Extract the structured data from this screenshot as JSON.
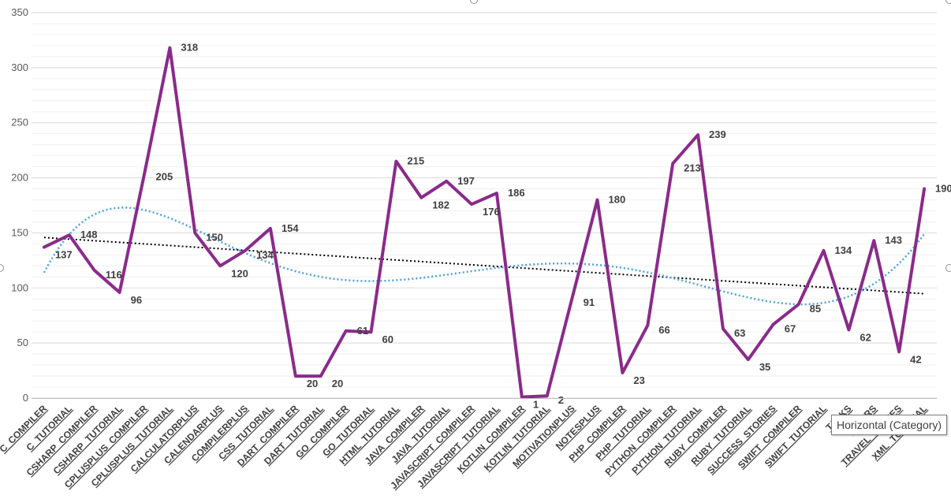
{
  "chart_data": {
    "type": "line",
    "title": "",
    "xlabel": "",
    "ylabel": "",
    "ylim": [
      0,
      350
    ],
    "yticks": [
      0,
      50,
      100,
      150,
      200,
      250,
      300,
      350
    ],
    "grid": true,
    "categories": [
      "C_COMPILER",
      "C_TUTORIAL",
      "CSHARP_COMPILER",
      "CSHARP_TUTORIAL",
      "CPLUSPLUS_COMPILER",
      "CPLUSPLUS_TUTORIAL",
      "CALCULATORPLUS",
      "CALENDARPLUS",
      "COMPILERPLUS",
      "CSS_TUTORIAL",
      "DART_COMPILER",
      "DART_TUTORIAL",
      "GO_COMPILER",
      "GO_TUTORIAL",
      "HTML_TUTORIAL",
      "JAVA_COMPILER",
      "JAVA_TUTORIAL",
      "JAVASCRIPT_COMPILER",
      "JAVASCRIPT_TUTORIAL",
      "KOTLIN_COMPILER",
      "KOTLIN_TUTORIAL",
      "MOTIVATIONPLUS",
      "NOTESPLUS",
      "PHP_COMPILER",
      "PHP_TUTORIAL",
      "PYTHON_COMPILER",
      "PYTHON_TUTORIAL",
      "RUBY_COMPILER",
      "RUBY_TUTORIAL",
      "SUCCESS_STORIES",
      "SWIFT_COMPILER",
      "SWIFT_TUTORIAL",
      "TASKS",
      "TIMERS",
      "TRAVEL_DIARIES",
      "XML_TUTORIAL"
    ],
    "x_labels_display": [
      "C_COMPILER",
      "C_TUTORIAL",
      "CSHARP_COMPILER",
      "CSHARP_TUTORIAL",
      "CPLUSPLUS_COMPILER",
      "CPLUSPLUS_TUTORIAL",
      "CALCULATORPLUS",
      "CALENDARPLUS",
      "COMPILERPLUS",
      "CSS_TUTORIAL",
      "DART_COMPILER",
      "DART_TUTORIAL",
      "GO_COMPILER",
      "GO_TUTORIAL",
      "HTML_TUTORIAL",
      "JAVA_COMPILER",
      "JAVA_TUTORIAL",
      "JAVASCRIPT_COMPILER",
      "JAVASCRIPT_TUTORIAL",
      "KOTLIN_COMPILER",
      "KOTLIN_TUTORIAL",
      "MOTIVATIONPLUS",
      "NOTESPLUS",
      "PHP_COMPILER",
      "PHP_TUTORIAL",
      "PYTHON_COMPILER",
      "PYTHON_TUTORIAL",
      "RUBY_COMPILER",
      "RUBY_TUTORIAL",
      "SUCCESS_STORIES",
      "SWIFT_COMPILER",
      "SWIFT_TUTORIAL",
      "TASKS",
      "TIMERS",
      "TRAVEL_DIARIES",
      "XML_TUTORIAL"
    ],
    "series": [
      {
        "values": [
          137,
          148,
          116,
          96,
          205,
          318,
          150,
          120,
          134,
          154,
          20,
          20,
          61,
          60,
          215,
          182,
          197,
          176,
          186,
          1,
          2,
          91,
          180,
          23,
          66,
          213,
          239,
          63,
          35,
          67,
          85,
          134,
          62,
          143,
          42,
          190
        ],
        "color": "#8b2a8b",
        "show_data_labels": true
      }
    ],
    "trendlines": [
      {
        "kind": "linear",
        "color": "#000000",
        "style": "dotted"
      },
      {
        "kind": "polynomial",
        "color": "#4aa3df",
        "style": "dotted"
      }
    ],
    "tooltip": "Horizontal (Category)"
  }
}
